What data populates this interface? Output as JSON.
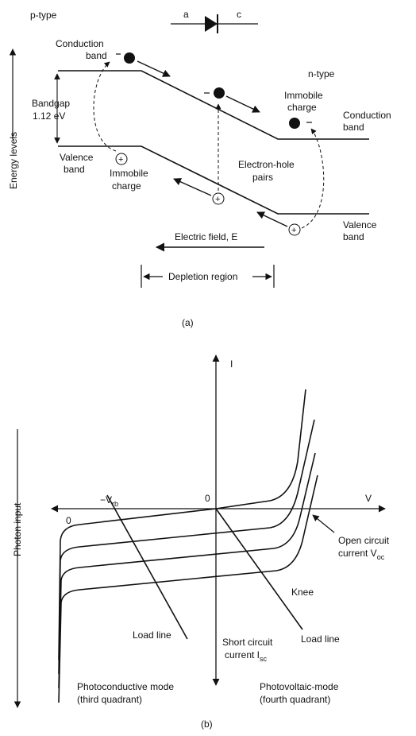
{
  "panel_a": {
    "p_type": "p-type",
    "n_type": "n-type",
    "anode": "a",
    "cathode": "c",
    "conduction_left": [
      "Conduction",
      "band"
    ],
    "conduction_right": [
      "Conduction",
      "band"
    ],
    "bandgap": [
      "Bandgap",
      "1.12 eV"
    ],
    "valence_left": [
      "Valence",
      "band"
    ],
    "valence_right": [
      "Valence",
      "band"
    ],
    "immobile_left": [
      "Immobile",
      "charge"
    ],
    "immobile_right": [
      "Immobile",
      "charge"
    ],
    "pairs": [
      "Electron-hole",
      "pairs"
    ],
    "energy_levels": "Energy levels",
    "electric_field": "Electric field, E",
    "depletion": "Depletion region",
    "caption": "(a)"
  },
  "panel_b": {
    "i_axis": "I",
    "v_axis": "V",
    "origin": "0",
    "zero_left": "0",
    "vrb_prefix": "−V",
    "vrb_sub": "rb",
    "photon_input": "Photon input",
    "open_circuit": [
      "Open circuit",
      "current V",
      "oc"
    ],
    "knee": "Knee",
    "load_line_left": "Load line",
    "load_line_right": "Load line",
    "short_circuit": [
      "Short circuit",
      "current I",
      "sc"
    ],
    "photoconductive": [
      "Photoconductive mode",
      "(third quadrant)"
    ],
    "photovoltaic": [
      "Photovoltaic-mode",
      "(fourth quadrant)"
    ],
    "caption": "(b)"
  }
}
